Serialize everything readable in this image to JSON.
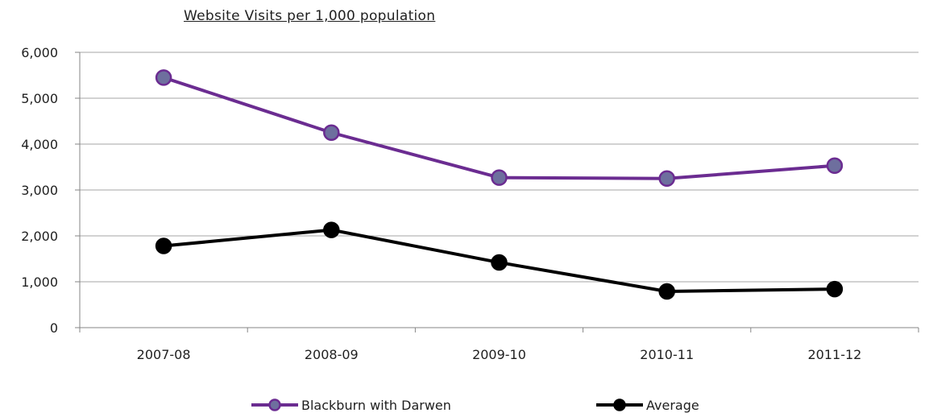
{
  "chart_data": {
    "type": "line",
    "title": "Website Visits per 1,000 population",
    "categories": [
      "2007-08",
      "2008-09",
      "2009-10",
      "2010-11",
      "2011-12"
    ],
    "ylim": [
      0,
      6000
    ],
    "yticks": [
      "0",
      "1,000",
      "2,000",
      "3,000",
      "4,000",
      "5,000",
      "6,000"
    ],
    "grid": true,
    "legend_position": "bottom",
    "series": [
      {
        "name": "Blackburn with Darwen",
        "values": [
          5450,
          4250,
          3270,
          3250,
          3530
        ],
        "color": "#6b2c91",
        "marker_fill": "#6e6f9e"
      },
      {
        "name": "Average",
        "values": [
          1780,
          2130,
          1420,
          790,
          840
        ],
        "color": "#000000",
        "marker_fill": "#000000"
      }
    ]
  }
}
